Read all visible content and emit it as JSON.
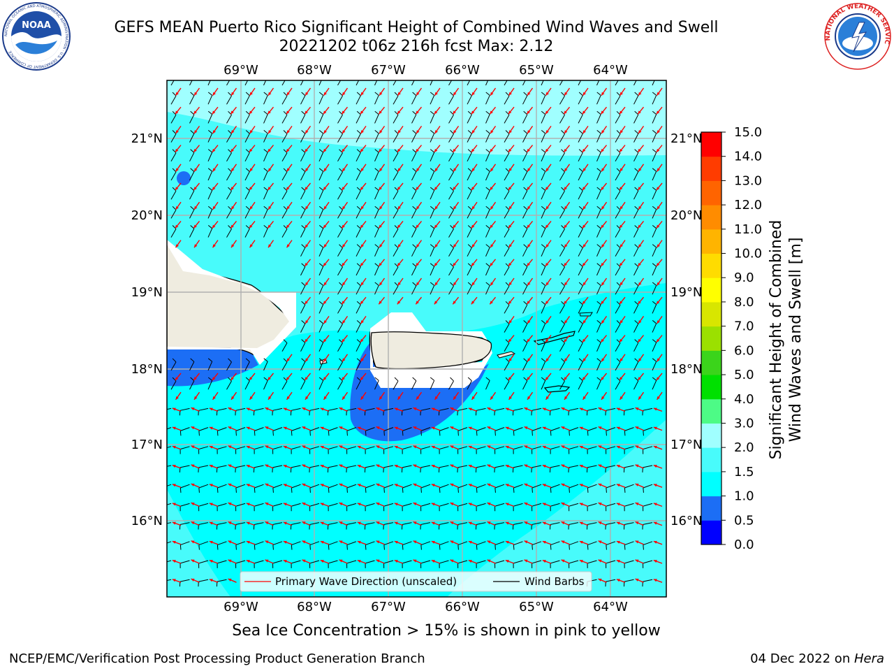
{
  "header": {
    "title_line1": "GEFS MEAN Puerto Rico Significant Height of Combined Wind Waves and Swell",
    "title_line2": "20221202 t06z 216h fcst   Max: 2.12"
  },
  "logos": {
    "noaa": {
      "icon": "noaa-logo",
      "center_text": "NOAA",
      "ring_text": "NATIONAL OCEANIC AND ATMOSPHERIC ADMINISTRATION · U.S. DEPARTMENT OF COMMERCE"
    },
    "nws": {
      "icon": "nws-logo",
      "ring_text": "NATIONAL WEATHER SERVICE"
    }
  },
  "map": {
    "lon_labels": [
      "69°W",
      "68°W",
      "67°W",
      "66°W",
      "65°W",
      "64°W"
    ],
    "lat_labels": [
      "21°N",
      "20°N",
      "19°N",
      "18°N",
      "17°N",
      "16°N"
    ],
    "legend": {
      "wave_direction": "Primary Wave Direction (unscaled)",
      "wind_barbs": "Wind Barbs"
    },
    "colors": {
      "land": "#efece0",
      "wave_arrow": "#ff0000",
      "barb": "#000000",
      "grid": "#b0b0b0"
    }
  },
  "colorbar": {
    "title_line1": "Significant Height of Combined",
    "title_line2": "Wind Waves and Swell [m]",
    "tick_labels": [
      "0.0",
      "0.5",
      "1.0",
      "1.5",
      "2.0",
      "3.0",
      "4.0",
      "5.0",
      "6.0",
      "7.0",
      "8.0",
      "9.0",
      "10.0",
      "11.0",
      "12.0",
      "13.0",
      "14.0",
      "15.0"
    ],
    "colors": [
      "#0000ff",
      "#1c6ef5",
      "#00ffff",
      "#48fbfb",
      "#a0ffff",
      "#4dfb86",
      "#00e000",
      "#3bd41b",
      "#9be000",
      "#d8e600",
      "#ffff00",
      "#ffdc00",
      "#ffb400",
      "#ff8c00",
      "#ff6400",
      "#ff3c00",
      "#ff0000"
    ]
  },
  "ice_note": "Sea Ice Concentration > 15% is shown in pink to yellow",
  "footer": {
    "left": "NCEP/EMC/Verification Post Processing Product Generation Branch",
    "right_date": "04 Dec 2022 on ",
    "right_host": "Hera"
  }
}
